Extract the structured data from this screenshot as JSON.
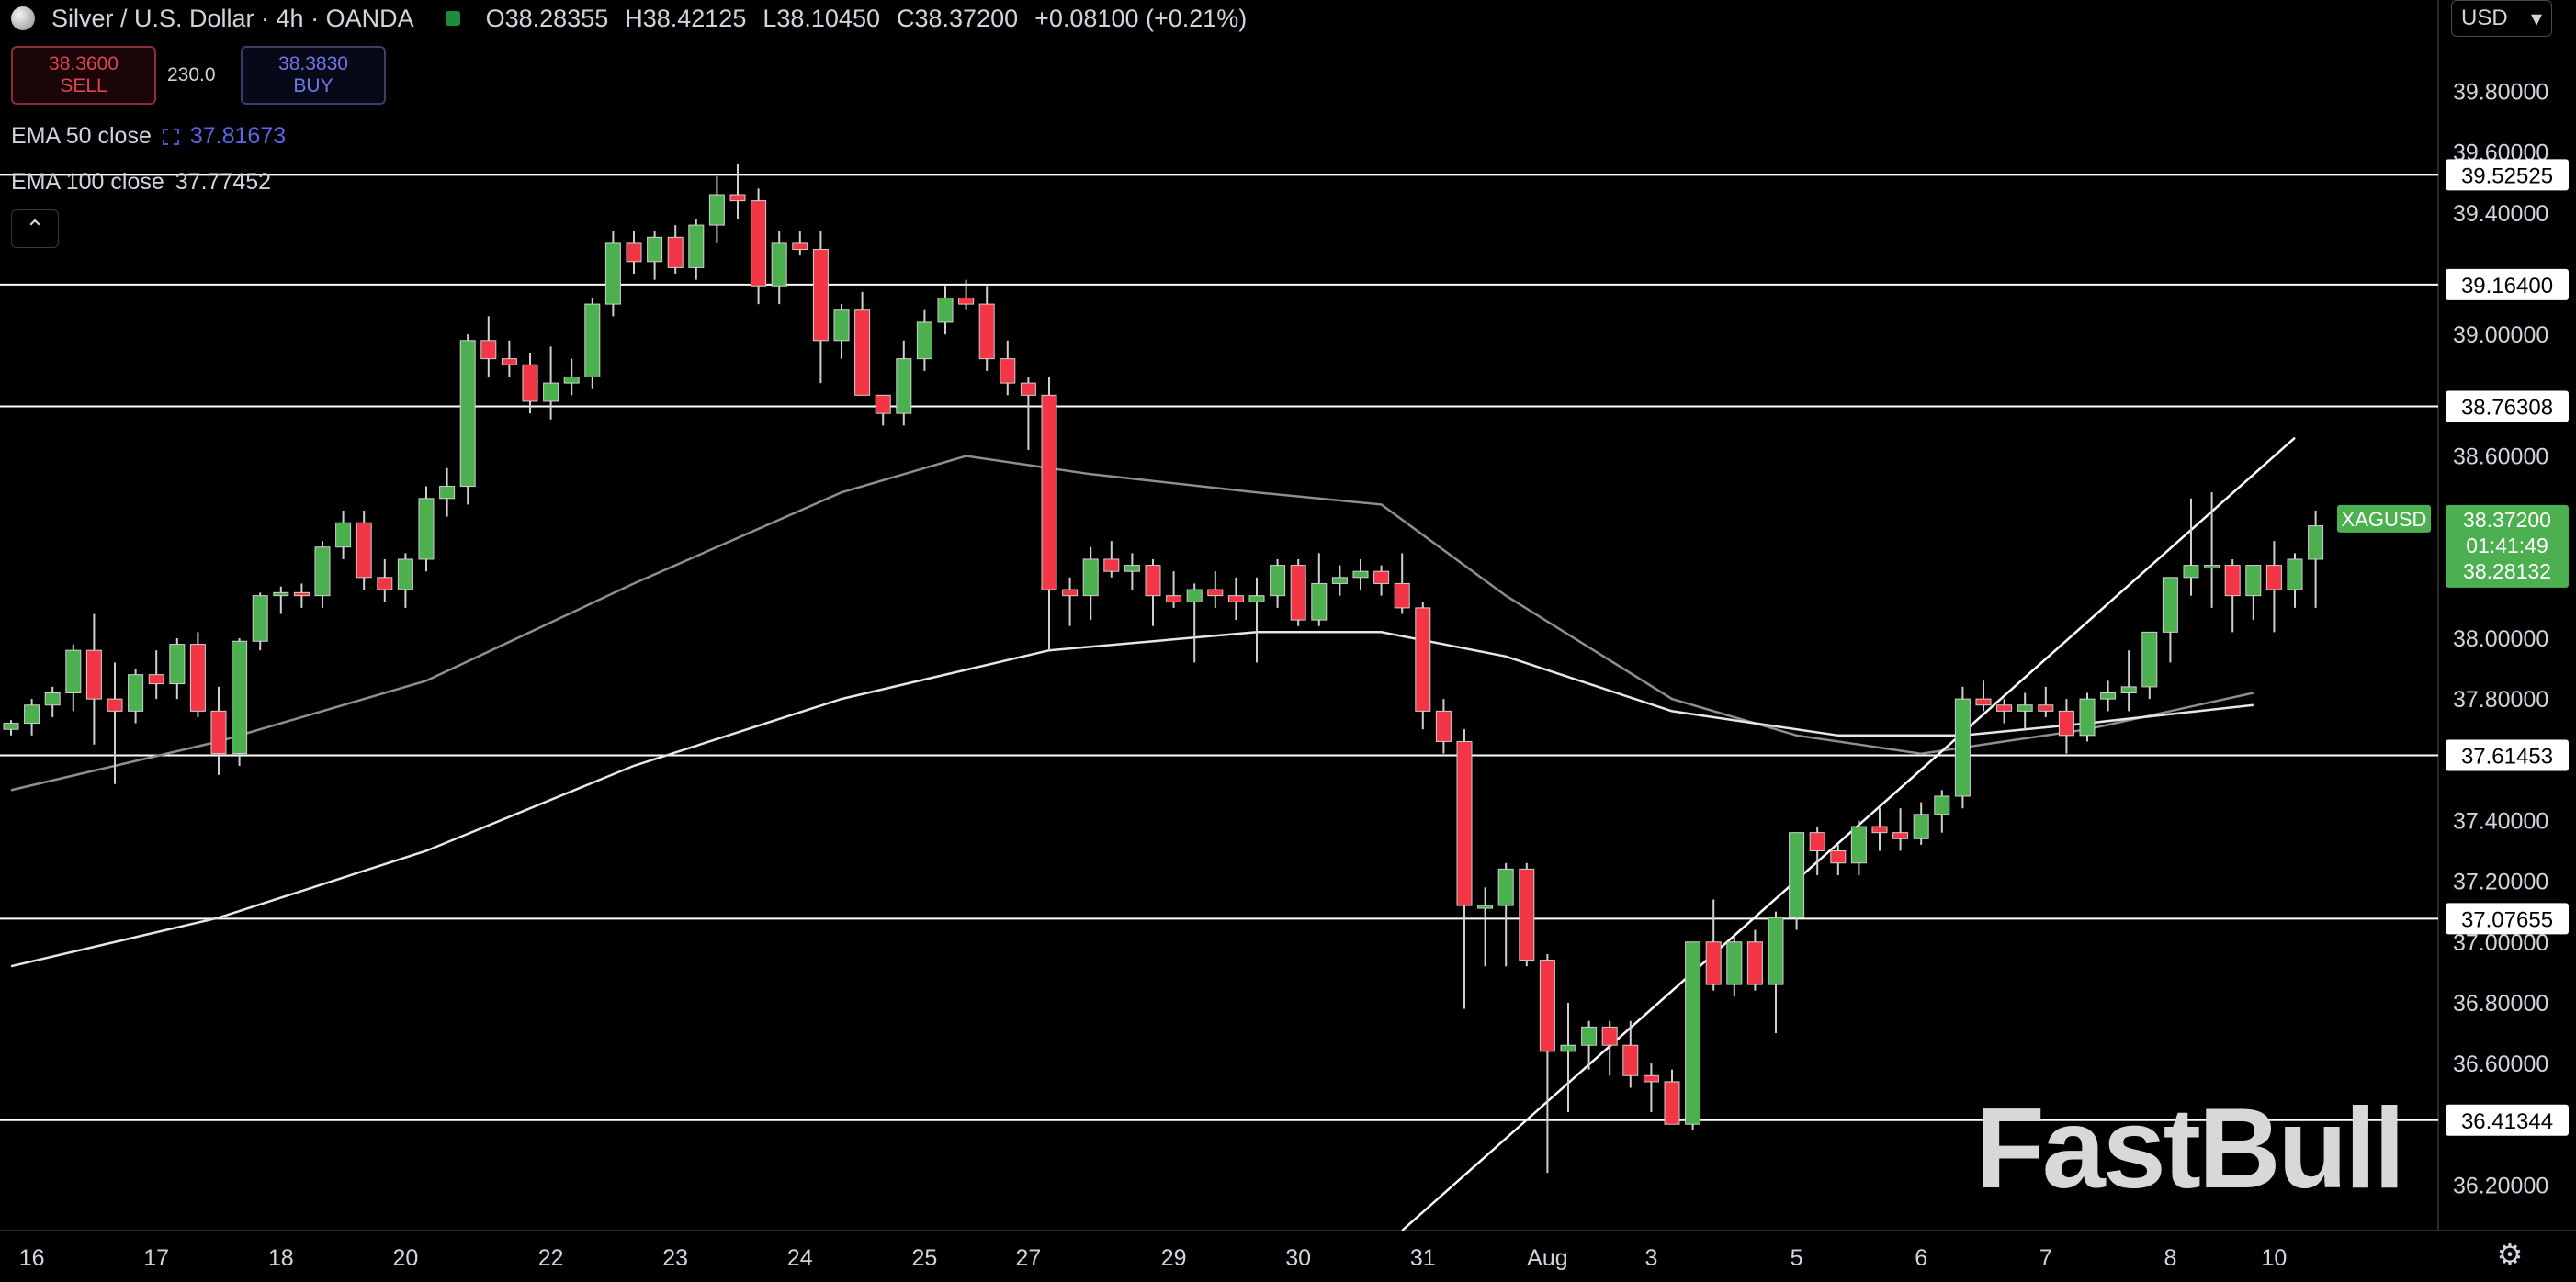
{
  "header": {
    "title": "Silver / U.S. Dollar · 4h · OANDA",
    "open": "O38.28355",
    "high": "H38.42125",
    "low": "L38.10450",
    "close": "C38.37200",
    "change": "+0.08100 (+0.21%)"
  },
  "trade": {
    "sell_price": "38.3600",
    "sell_label": "SELL",
    "spread": "230.0",
    "buy_price": "38.3830",
    "buy_label": "BUY"
  },
  "indicators": {
    "ema50_label": "EMA 50 close",
    "ema50_value": "37.81673",
    "ema100_label": "EMA 100 close",
    "ema100_value": "37.77452"
  },
  "controls": {
    "currency": "USD",
    "collapse_icon": "chevron-up-icon",
    "settings_icon": "gear-icon"
  },
  "watermark": "FastBull",
  "colors": {
    "up": "#4caf50",
    "down": "#f23645",
    "background": "#000000",
    "line": "#ffffff",
    "ema": "#9e9e9e",
    "symbol_label": "#4caf50"
  },
  "chart_data": {
    "type": "candlestick",
    "symbol": "XAGUSD",
    "timeframe": "4h",
    "ylim": [
      36.05,
      39.98
    ],
    "y_ticks": [
      "39.80000",
      "39.60000",
      "39.40000",
      "39.00000",
      "38.60000",
      "38.00000",
      "37.80000",
      "37.40000",
      "37.20000",
      "37.00000",
      "36.80000",
      "36.60000",
      "36.20000"
    ],
    "x_ticks": [
      {
        "label": "16",
        "i": 1
      },
      {
        "label": "17",
        "i": 7
      },
      {
        "label": "18",
        "i": 13
      },
      {
        "label": "20",
        "i": 19
      },
      {
        "label": "22",
        "i": 26
      },
      {
        "label": "23",
        "i": 32
      },
      {
        "label": "24",
        "i": 38
      },
      {
        "label": "25",
        "i": 44
      },
      {
        "label": "27",
        "i": 49
      },
      {
        "label": "29",
        "i": 56
      },
      {
        "label": "30",
        "i": 62
      },
      {
        "label": "31",
        "i": 68
      },
      {
        "label": "Aug",
        "i": 74
      },
      {
        "label": "3",
        "i": 79
      },
      {
        "label": "5",
        "i": 86
      },
      {
        "label": "6",
        "i": 92
      },
      {
        "label": "7",
        "i": 98
      },
      {
        "label": "8",
        "i": 104
      },
      {
        "label": "10",
        "i": 109
      }
    ],
    "horizontal_levels": [
      "39.52525",
      "39.16400",
      "38.76308",
      "37.61453",
      "37.07655",
      "36.41344"
    ],
    "price_labels": {
      "symbol": "XAGUSD",
      "price": "38.37200",
      "countdown": "01:41:49",
      "second": "38.28132"
    },
    "candles": [
      [
        37.7,
        37.73,
        37.68,
        37.72
      ],
      [
        37.72,
        37.8,
        37.68,
        37.78
      ],
      [
        37.78,
        37.84,
        37.74,
        37.82
      ],
      [
        37.82,
        37.98,
        37.76,
        37.96
      ],
      [
        37.96,
        38.08,
        37.65,
        37.8
      ],
      [
        37.8,
        37.92,
        37.52,
        37.76
      ],
      [
        37.76,
        37.9,
        37.72,
        37.88
      ],
      [
        37.88,
        37.96,
        37.8,
        37.85
      ],
      [
        37.85,
        38.0,
        37.8,
        37.98
      ],
      [
        37.98,
        38.02,
        37.74,
        37.76
      ],
      [
        37.76,
        37.84,
        37.55,
        37.62
      ],
      [
        37.62,
        38.0,
        37.58,
        37.99
      ],
      [
        37.99,
        38.15,
        37.96,
        38.14
      ],
      [
        38.14,
        38.17,
        38.08,
        38.15
      ],
      [
        38.15,
        38.18,
        38.1,
        38.14
      ],
      [
        38.14,
        38.32,
        38.1,
        38.3
      ],
      [
        38.3,
        38.42,
        38.26,
        38.38
      ],
      [
        38.38,
        38.42,
        38.16,
        38.2
      ],
      [
        38.2,
        38.26,
        38.12,
        38.16
      ],
      [
        38.16,
        38.28,
        38.1,
        38.26
      ],
      [
        38.26,
        38.5,
        38.22,
        38.46
      ],
      [
        38.46,
        38.56,
        38.4,
        38.5
      ],
      [
        38.5,
        39.0,
        38.44,
        38.98
      ],
      [
        38.98,
        39.06,
        38.86,
        38.92
      ],
      [
        38.92,
        38.98,
        38.86,
        38.9
      ],
      [
        38.9,
        38.94,
        38.74,
        38.78
      ],
      [
        38.78,
        38.96,
        38.72,
        38.84
      ],
      [
        38.84,
        38.92,
        38.8,
        38.86
      ],
      [
        38.86,
        39.12,
        38.82,
        39.1
      ],
      [
        39.1,
        39.34,
        39.06,
        39.3
      ],
      [
        39.3,
        39.34,
        39.2,
        39.24
      ],
      [
        39.24,
        39.34,
        39.18,
        39.32
      ],
      [
        39.32,
        39.36,
        39.2,
        39.22
      ],
      [
        39.22,
        39.38,
        39.18,
        39.36
      ],
      [
        39.36,
        39.52,
        39.3,
        39.46
      ],
      [
        39.46,
        39.56,
        39.38,
        39.44
      ],
      [
        39.44,
        39.48,
        39.1,
        39.16
      ],
      [
        39.16,
        39.34,
        39.1,
        39.3
      ],
      [
        39.3,
        39.34,
        39.26,
        39.28
      ],
      [
        39.28,
        39.34,
        38.84,
        38.98
      ],
      [
        38.98,
        39.1,
        38.92,
        39.08
      ],
      [
        39.08,
        39.14,
        38.8,
        38.8
      ],
      [
        38.8,
        38.8,
        38.7,
        38.74
      ],
      [
        38.74,
        38.98,
        38.7,
        38.92
      ],
      [
        38.92,
        39.08,
        38.88,
        39.04
      ],
      [
        39.04,
        39.16,
        39.0,
        39.12
      ],
      [
        39.12,
        39.18,
        39.08,
        39.1
      ],
      [
        39.1,
        39.16,
        38.88,
        38.92
      ],
      [
        38.92,
        38.98,
        38.8,
        38.84
      ],
      [
        38.84,
        38.86,
        38.62,
        38.8
      ],
      [
        38.8,
        38.86,
        37.96,
        38.16
      ],
      [
        38.16,
        38.2,
        38.04,
        38.14
      ],
      [
        38.14,
        38.3,
        38.06,
        38.26
      ],
      [
        38.26,
        38.32,
        38.2,
        38.22
      ],
      [
        38.22,
        38.28,
        38.16,
        38.24
      ],
      [
        38.24,
        38.26,
        38.04,
        38.14
      ],
      [
        38.14,
        38.22,
        38.1,
        38.12
      ],
      [
        38.12,
        38.18,
        37.92,
        38.16
      ],
      [
        38.16,
        38.22,
        38.1,
        38.14
      ],
      [
        38.14,
        38.2,
        38.06,
        38.12
      ],
      [
        38.12,
        38.2,
        37.92,
        38.14
      ],
      [
        38.14,
        38.26,
        38.1,
        38.24
      ],
      [
        38.24,
        38.26,
        38.04,
        38.06
      ],
      [
        38.06,
        38.28,
        38.04,
        38.18
      ],
      [
        38.18,
        38.24,
        38.14,
        38.2
      ],
      [
        38.2,
        38.26,
        38.16,
        38.22
      ],
      [
        38.22,
        38.24,
        38.14,
        38.18
      ],
      [
        38.18,
        38.28,
        38.08,
        38.1
      ],
      [
        38.1,
        38.12,
        37.7,
        37.76
      ],
      [
        37.76,
        37.8,
        37.62,
        37.66
      ],
      [
        37.66,
        37.7,
        36.78,
        37.12
      ],
      [
        37.12,
        37.18,
        36.92,
        37.12
      ],
      [
        37.12,
        37.26,
        36.92,
        37.24
      ],
      [
        37.24,
        37.26,
        36.92,
        36.94
      ],
      [
        36.94,
        36.96,
        36.24,
        36.64
      ],
      [
        36.64,
        36.8,
        36.44,
        36.66
      ],
      [
        36.66,
        36.74,
        36.58,
        36.72
      ],
      [
        36.72,
        36.74,
        36.56,
        36.66
      ],
      [
        36.66,
        36.74,
        36.52,
        36.56
      ],
      [
        36.56,
        36.6,
        36.44,
        36.54
      ],
      [
        36.54,
        36.58,
        36.4,
        36.4
      ],
      [
        36.4,
        37.0,
        36.38,
        37.0
      ],
      [
        37.0,
        37.14,
        36.84,
        36.86
      ],
      [
        36.86,
        37.02,
        36.82,
        37.0
      ],
      [
        37.0,
        37.04,
        36.84,
        36.86
      ],
      [
        36.86,
        37.1,
        36.7,
        37.08
      ],
      [
        37.08,
        37.36,
        37.04,
        37.36
      ],
      [
        37.36,
        37.38,
        37.22,
        37.3
      ],
      [
        37.3,
        37.32,
        37.22,
        37.26
      ],
      [
        37.26,
        37.4,
        37.22,
        37.38
      ],
      [
        37.38,
        37.44,
        37.3,
        37.36
      ],
      [
        37.36,
        37.44,
        37.3,
        37.34
      ],
      [
        37.34,
        37.46,
        37.32,
        37.42
      ],
      [
        37.42,
        37.5,
        37.36,
        37.48
      ],
      [
        37.48,
        37.84,
        37.44,
        37.8
      ],
      [
        37.8,
        37.86,
        37.76,
        37.78
      ],
      [
        37.78,
        37.8,
        37.72,
        37.76
      ],
      [
        37.76,
        37.82,
        37.7,
        37.78
      ],
      [
        37.78,
        37.84,
        37.74,
        37.76
      ],
      [
        37.76,
        37.8,
        37.62,
        37.68
      ],
      [
        37.68,
        37.82,
        37.66,
        37.8
      ],
      [
        37.8,
        37.86,
        37.76,
        37.82
      ],
      [
        37.82,
        37.96,
        37.76,
        37.84
      ],
      [
        37.84,
        38.02,
        37.8,
        38.02
      ],
      [
        38.02,
        38.2,
        37.92,
        38.2
      ],
      [
        38.2,
        38.46,
        38.14,
        38.24
      ],
      [
        38.24,
        38.48,
        38.1,
        38.24
      ],
      [
        38.24,
        38.26,
        38.02,
        38.14
      ],
      [
        38.14,
        38.22,
        38.06,
        38.24
      ],
      [
        38.24,
        38.32,
        38.02,
        38.16
      ],
      [
        38.16,
        38.28,
        38.1,
        38.26
      ],
      [
        38.26,
        38.42,
        38.1,
        38.37
      ]
    ],
    "ema50": [
      [
        0,
        37.5
      ],
      [
        10,
        37.66
      ],
      [
        20,
        37.86
      ],
      [
        30,
        38.18
      ],
      [
        40,
        38.48
      ],
      [
        46,
        38.6
      ],
      [
        52,
        38.54
      ],
      [
        60,
        38.48
      ],
      [
        66,
        38.44
      ],
      [
        72,
        38.14
      ],
      [
        80,
        37.8
      ],
      [
        86,
        37.68
      ],
      [
        92,
        37.62
      ],
      [
        96,
        37.66
      ],
      [
        100,
        37.7
      ],
      [
        108,
        37.82
      ]
    ],
    "ema100": [
      [
        0,
        36.92
      ],
      [
        10,
        37.08
      ],
      [
        20,
        37.3
      ],
      [
        30,
        37.58
      ],
      [
        40,
        37.8
      ],
      [
        50,
        37.96
      ],
      [
        60,
        38.02
      ],
      [
        66,
        38.02
      ],
      [
        72,
        37.94
      ],
      [
        80,
        37.76
      ],
      [
        88,
        37.68
      ],
      [
        94,
        37.68
      ],
      [
        100,
        37.72
      ],
      [
        108,
        37.78
      ]
    ],
    "trendline": {
      "from": [
        67,
        36.05
      ],
      "to": [
        110,
        38.66
      ]
    }
  }
}
